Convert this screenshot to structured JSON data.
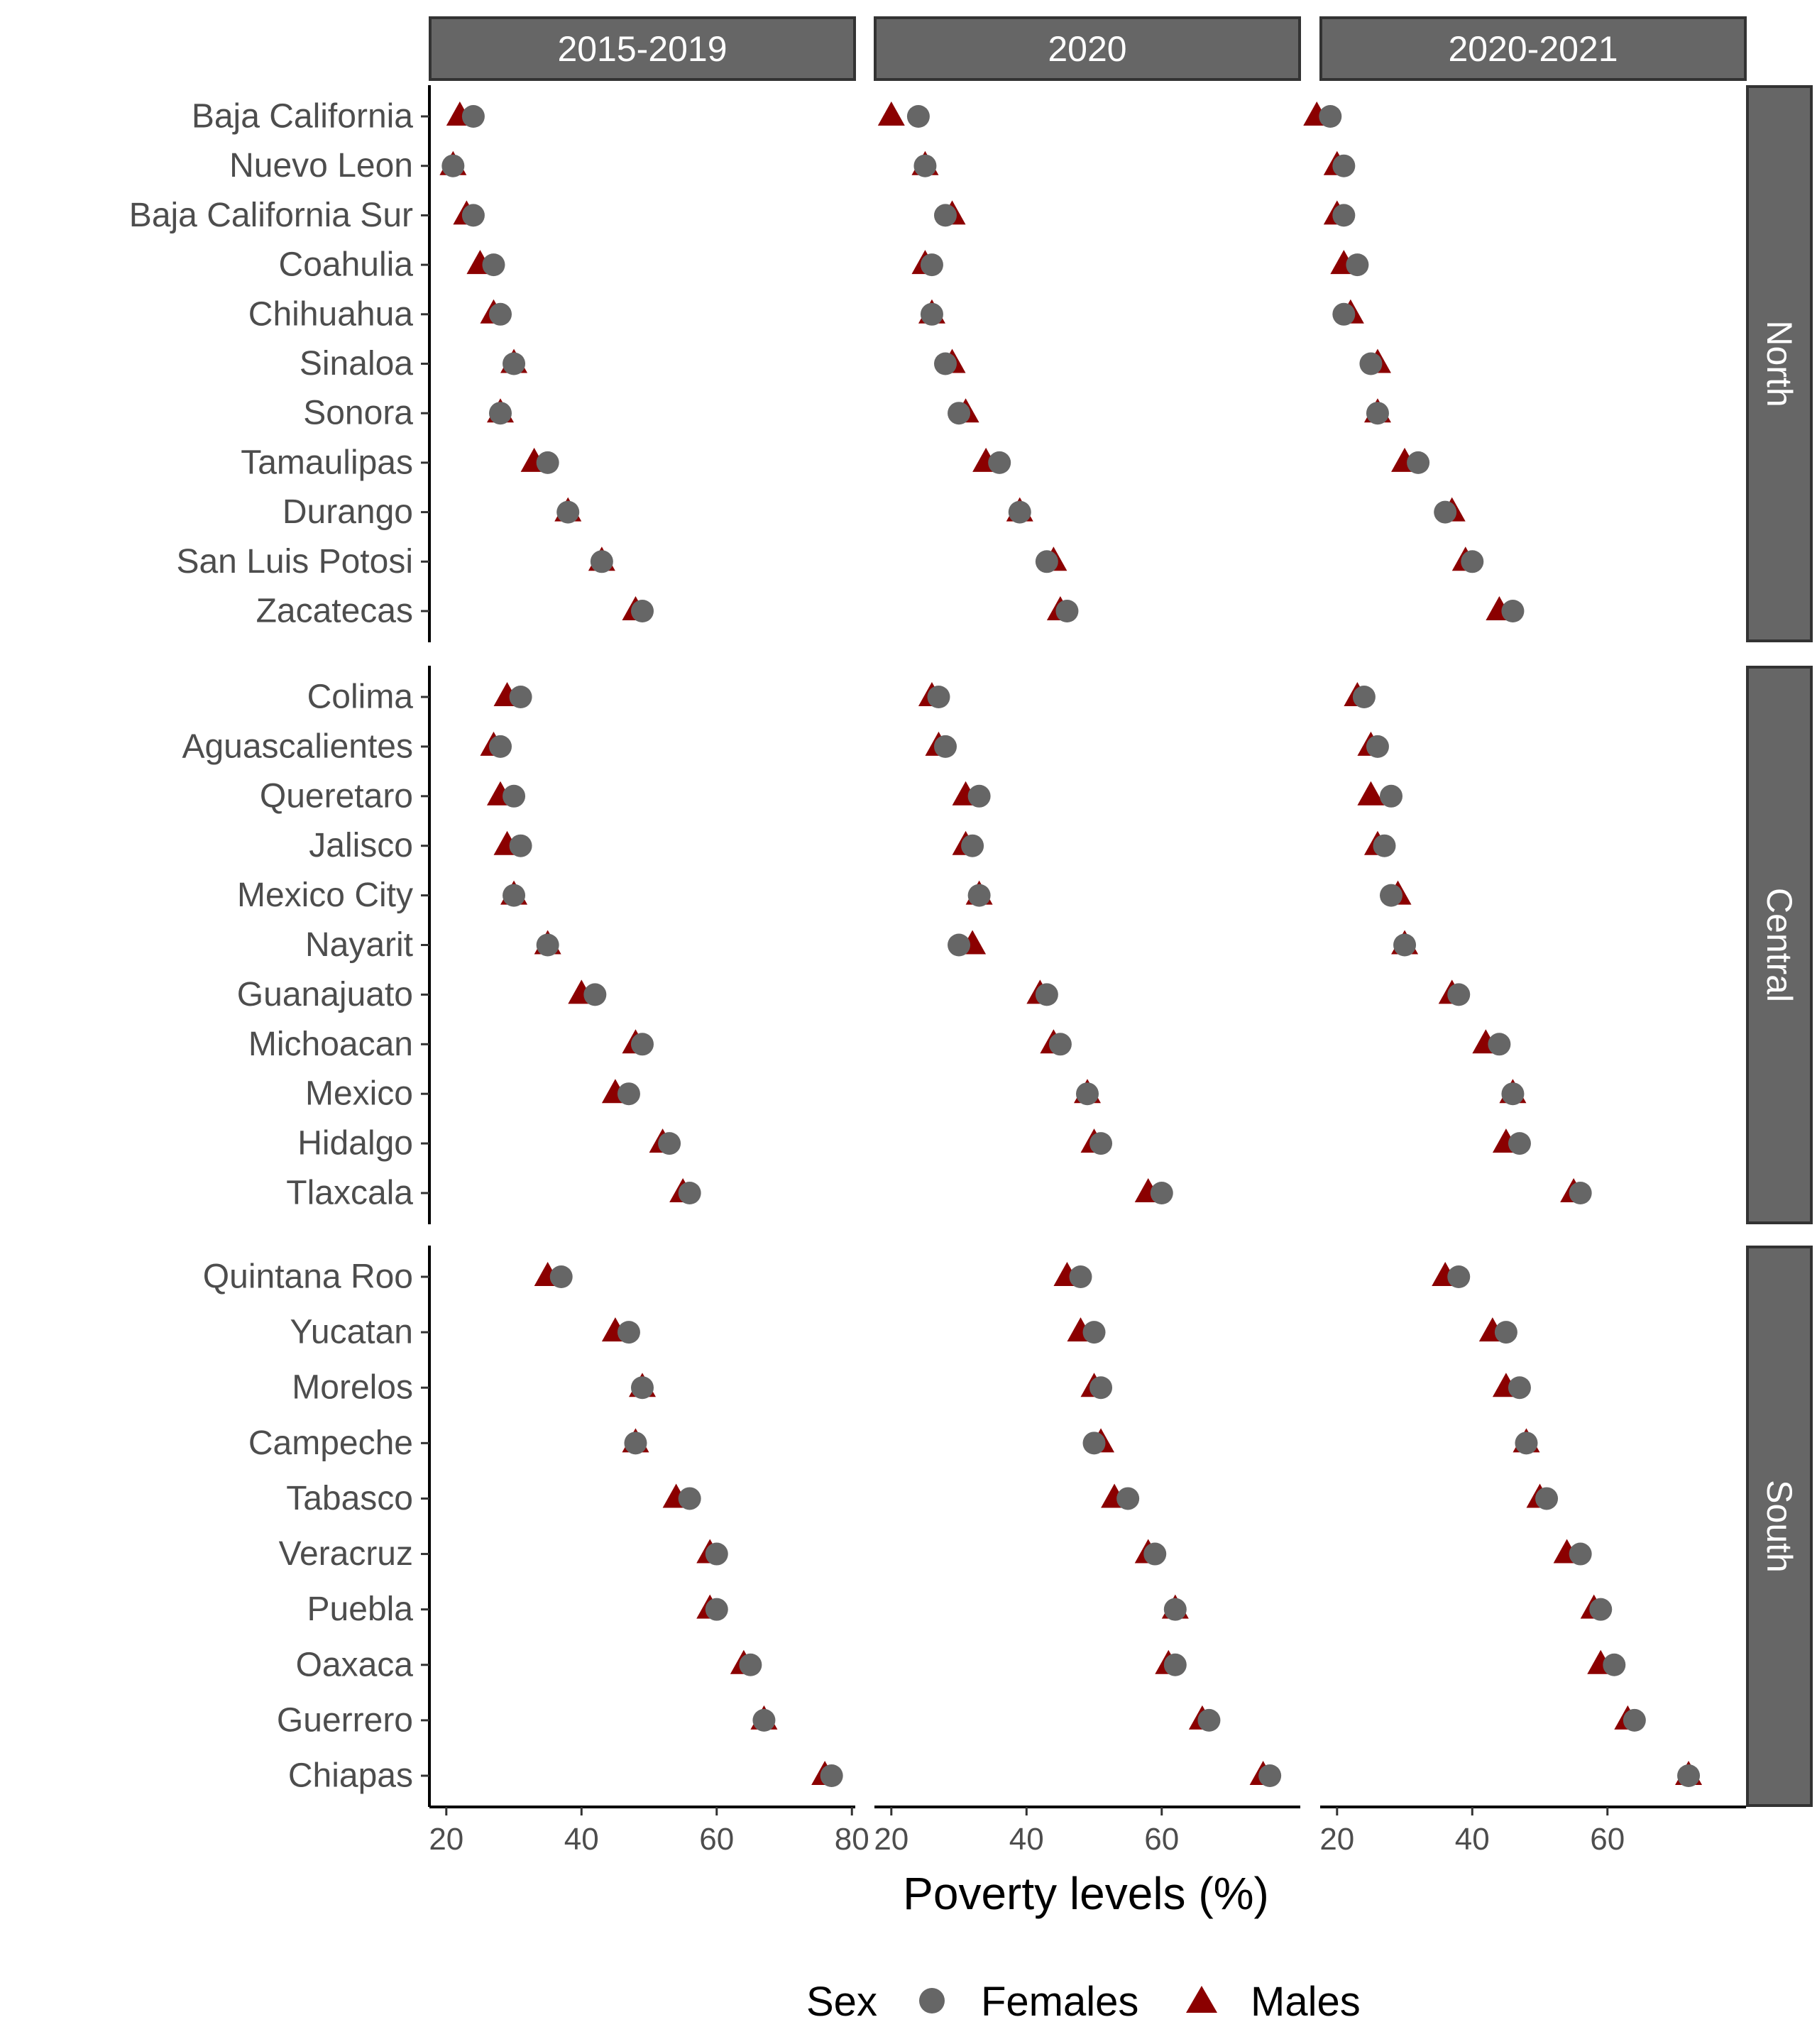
{
  "chart_data": {
    "type": "scatter",
    "xlabel": "Poverty levels (%)",
    "ylabel": "",
    "title": "",
    "x_ticks": [
      20,
      40,
      60,
      80
    ],
    "xlim": [
      17.5,
      80.5
    ],
    "legend": {
      "title": "Sex",
      "placement": "bottom",
      "entries": [
        {
          "name": "Females",
          "shape": "circle",
          "color": "#666666"
        },
        {
          "name": "Males",
          "shape": "triangle",
          "color": "#8b0000"
        }
      ]
    },
    "periods": [
      "2015-2019",
      "2020",
      "2020-2021"
    ],
    "regions": [
      {
        "name": "North",
        "states": [
          {
            "state": "Baja California",
            "females": [
              24,
              24,
              19
            ],
            "males": [
              22,
              20,
              17
            ]
          },
          {
            "state": "Nuevo Leon",
            "females": [
              21,
              25,
              21
            ],
            "males": [
              21,
              25,
              20
            ]
          },
          {
            "state": "Baja California Sur",
            "females": [
              24,
              28,
              21
            ],
            "males": [
              23,
              29,
              20
            ]
          },
          {
            "state": "Coahulia",
            "females": [
              27,
              26,
              23
            ],
            "males": [
              25,
              25,
              21
            ]
          },
          {
            "state": "Chihuahua",
            "females": [
              28,
              26,
              21
            ],
            "males": [
              27,
              26,
              22
            ]
          },
          {
            "state": "Sinaloa",
            "females": [
              30,
              28,
              25
            ],
            "males": [
              30,
              29,
              26
            ]
          },
          {
            "state": "Sonora",
            "females": [
              28,
              30,
              26
            ],
            "males": [
              28,
              31,
              26
            ]
          },
          {
            "state": "Tamaulipas",
            "females": [
              35,
              36,
              32
            ],
            "males": [
              33,
              34,
              30
            ]
          },
          {
            "state": "Durango",
            "females": [
              38,
              39,
              36
            ],
            "males": [
              38,
              39,
              37
            ]
          },
          {
            "state": "San Luis Potosi",
            "females": [
              43,
              43,
              40
            ],
            "males": [
              43,
              44,
              39
            ]
          },
          {
            "state": "Zacatecas",
            "females": [
              49,
              46,
              46
            ],
            "males": [
              48,
              45,
              44
            ]
          }
        ]
      },
      {
        "name": "Central",
        "states": [
          {
            "state": "Colima",
            "females": [
              31,
              27,
              24
            ],
            "males": [
              29,
              26,
              23
            ]
          },
          {
            "state": "Aguascalientes",
            "females": [
              28,
              28,
              26
            ],
            "males": [
              27,
              27,
              25
            ]
          },
          {
            "state": "Queretaro",
            "females": [
              30,
              33,
              28
            ],
            "males": [
              28,
              31,
              25
            ]
          },
          {
            "state": "Jalisco",
            "females": [
              31,
              32,
              27
            ],
            "males": [
              29,
              31,
              26
            ]
          },
          {
            "state": "Mexico City",
            "females": [
              30,
              33,
              28
            ],
            "males": [
              30,
              33,
              29
            ]
          },
          {
            "state": "Nayarit",
            "females": [
              35,
              30,
              30
            ],
            "males": [
              35,
              32,
              30
            ]
          },
          {
            "state": "Guanajuato",
            "females": [
              42,
              43,
              38
            ],
            "males": [
              40,
              42,
              37
            ]
          },
          {
            "state": "Michoacan",
            "females": [
              49,
              45,
              44
            ],
            "males": [
              48,
              44,
              42
            ]
          },
          {
            "state": "Mexico",
            "females": [
              47,
              49,
              46
            ],
            "males": [
              45,
              49,
              46
            ]
          },
          {
            "state": "Hidalgo",
            "females": [
              53,
              51,
              47
            ],
            "males": [
              52,
              50,
              45
            ]
          },
          {
            "state": "Tlaxcala",
            "females": [
              56,
              60,
              56
            ],
            "males": [
              55,
              58,
              55
            ]
          }
        ]
      },
      {
        "name": "South",
        "states": [
          {
            "state": "Quintana Roo",
            "females": [
              37,
              48,
              38
            ],
            "males": [
              35,
              46,
              36
            ]
          },
          {
            "state": "Yucatan",
            "females": [
              47,
              50,
              45
            ],
            "males": [
              45,
              48,
              43
            ]
          },
          {
            "state": "Morelos",
            "females": [
              49,
              51,
              47
            ],
            "males": [
              49,
              50,
              45
            ]
          },
          {
            "state": "Campeche",
            "females": [
              48,
              50,
              48
            ],
            "males": [
              48,
              51,
              48
            ]
          },
          {
            "state": "Tabasco",
            "females": [
              56,
              55,
              51
            ],
            "males": [
              54,
              53,
              50
            ]
          },
          {
            "state": "Veracruz",
            "females": [
              60,
              59,
              56
            ],
            "males": [
              59,
              58,
              54
            ]
          },
          {
            "state": "Puebla",
            "females": [
              60,
              62,
              59
            ],
            "males": [
              59,
              62,
              58
            ]
          },
          {
            "state": "Oaxaca",
            "females": [
              65,
              62,
              61
            ],
            "males": [
              64,
              61,
              59
            ]
          },
          {
            "state": "Guerrero",
            "females": [
              67,
              67,
              64
            ],
            "males": [
              67,
              66,
              63
            ]
          },
          {
            "state": "Chiapas",
            "females": [
              77,
              76,
              72
            ],
            "males": [
              76,
              75,
              72
            ]
          }
        ]
      }
    ],
    "colors": {
      "females": "#666666",
      "males": "#8b0000",
      "strip": "#666666",
      "strip_border": "#333333"
    }
  }
}
